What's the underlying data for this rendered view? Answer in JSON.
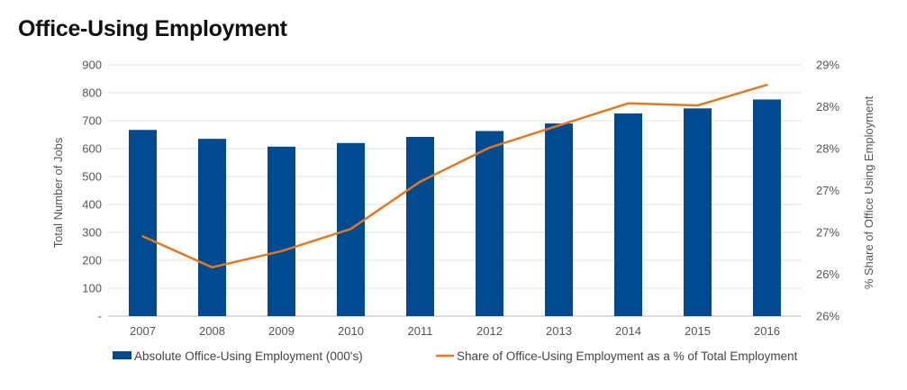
{
  "chart_data": {
    "type": "bar",
    "title": "Office-Using Employment",
    "categories": [
      "2007",
      "2008",
      "2009",
      "2010",
      "2011",
      "2012",
      "2013",
      "2014",
      "2015",
      "2016"
    ],
    "series": [
      {
        "name": "Absolute Office-Using Employment (000's)",
        "type": "bar",
        "axis": "left",
        "color": "#004a8f",
        "values": [
          667,
          635,
          607,
          620,
          642,
          663,
          690,
          726,
          744,
          776
        ]
      },
      {
        "name": "Share of Office-Using Employment as a % of Total Employment",
        "type": "line",
        "axis": "right",
        "color": "#e07a22",
        "values": [
          26.88,
          26.46,
          26.68,
          26.98,
          27.62,
          28.08,
          28.38,
          28.68,
          28.65,
          28.93
        ]
      }
    ],
    "ylabel": "Total Number of Jobs",
    "ylim": [
      0,
      900
    ],
    "yticks": [
      "-",
      "100",
      "200",
      "300",
      "400",
      "500",
      "600",
      "700",
      "800",
      "900"
    ],
    "y2label": "% Share of Office Using Employment",
    "y2lim": [
      25.8,
      29.2
    ],
    "y2ticks": [
      "26%",
      "26%",
      "27%",
      "27%",
      "28%",
      "28%",
      "29%"
    ],
    "grid": true,
    "legend_position": "bottom"
  }
}
